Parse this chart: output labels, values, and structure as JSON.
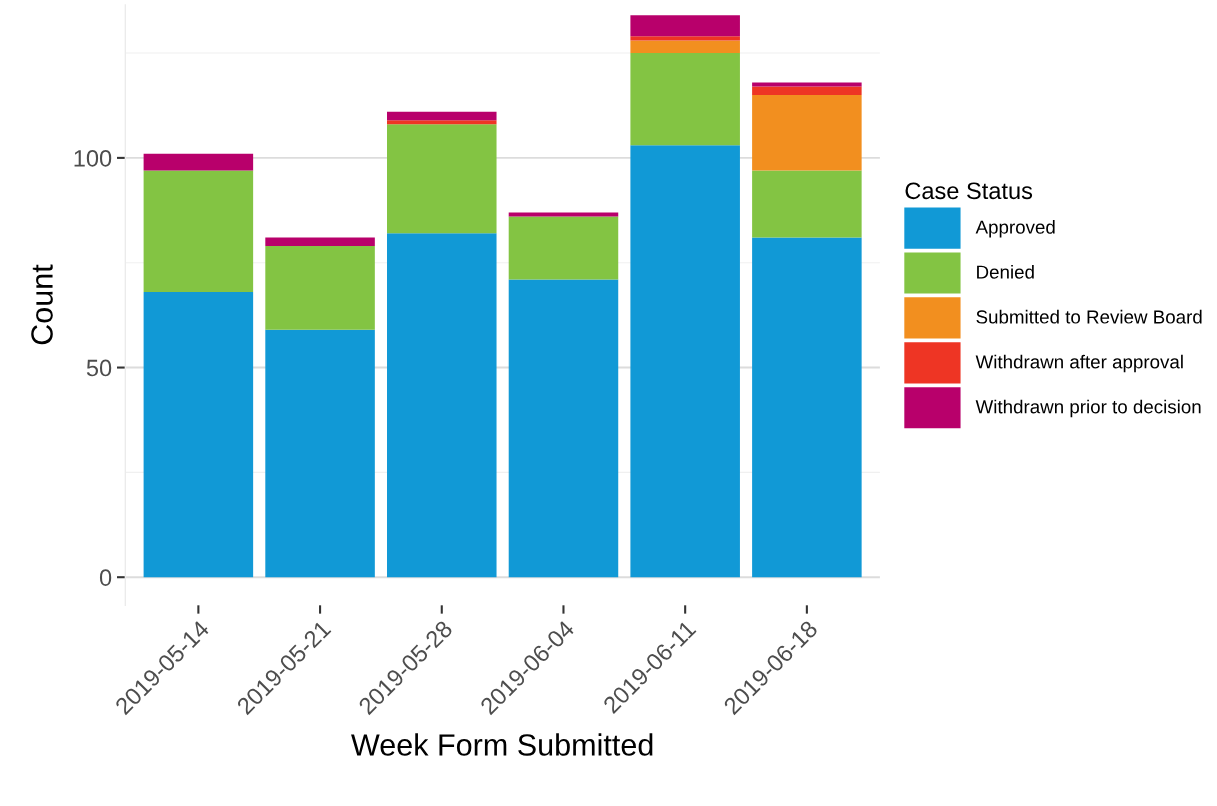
{
  "chart_data": {
    "type": "bar",
    "stacked": true,
    "xlabel": "Week Form Submitted",
    "ylabel": "Count",
    "legend_title": "Case Status",
    "legend": "right",
    "categories": [
      "2019-05-14",
      "2019-05-21",
      "2019-05-28",
      "2019-06-04",
      "2019-06-11",
      "2019-06-18"
    ],
    "series": [
      {
        "name": "Approved",
        "color": "#1199d6",
        "values": [
          68,
          59,
          82,
          71,
          103,
          81
        ]
      },
      {
        "name": "Denied",
        "color": "#83c443",
        "values": [
          29,
          20,
          26,
          15,
          22,
          16
        ]
      },
      {
        "name": "Submitted to Review Board",
        "color": "#f28f1f",
        "values": [
          0,
          0,
          0,
          0,
          3,
          18
        ]
      },
      {
        "name": "Withdrawn after approval",
        "color": "#ee3524",
        "values": [
          0,
          0,
          1,
          0,
          1,
          2
        ]
      },
      {
        "name": "Withdrawn prior to decision",
        "color": "#b8006b",
        "values": [
          4,
          2,
          2,
          1,
          5,
          1
        ]
      }
    ],
    "ylim": [
      -6.7,
      136.5
    ],
    "yticks": [
      0,
      {
        "value": 25,
        "label": null
      },
      50,
      {
        "value": 75,
        "label": null
      },
      100,
      {
        "value": 125,
        "label": null
      }
    ],
    "grid": "y"
  }
}
